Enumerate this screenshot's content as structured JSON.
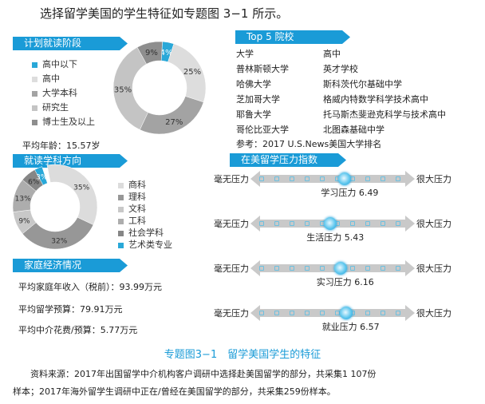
{
  "title": "选择留学美国的学生特征如专题图 3−1 所示。",
  "stage": {
    "header": "计划就读阶段",
    "avg_age": "平均年龄：15.57岁",
    "items": [
      {
        "label": "高中以下",
        "pct": 4,
        "text": "4%",
        "color": "#29a8d8"
      },
      {
        "label": "高中",
        "pct": 25,
        "text": "25%",
        "color": "#dddddd"
      },
      {
        "label": "大学本科",
        "pct": 27,
        "text": "27%",
        "color": "#a3a3a3"
      },
      {
        "label": "研究生",
        "pct": 35,
        "text": "35%",
        "color": "#c4c4c4"
      },
      {
        "label": "博士生及以上",
        "pct": 9,
        "text": "9%",
        "color": "#8e8e8e"
      }
    ]
  },
  "subject": {
    "header": "就读学科方向",
    "items": [
      {
        "label": "商科",
        "pct": 35,
        "text": "35%",
        "color": "#dcdcdc"
      },
      {
        "label": "理科",
        "pct": 32,
        "text": "32%",
        "color": "#979797"
      },
      {
        "label": "文科",
        "pct": 9,
        "text": "9%",
        "color": "#c8c8c8"
      },
      {
        "label": "工科",
        "pct": 13,
        "text": "13%",
        "color": "#adadad"
      },
      {
        "label": "社会学科",
        "pct": 6,
        "text": "6%",
        "color": "#868686"
      },
      {
        "label": "艺术类专业",
        "pct": 3,
        "text": "3%",
        "color": "#29a8d8"
      }
    ]
  },
  "economy": {
    "header": "家庭经济情况",
    "lines": [
      "平均家庭年收入（税前）：93.99万元",
      "平均留学预算：79.91万元",
      "平均中介花费/预算：5.77万元"
    ]
  },
  "top5": {
    "header": "Top 5 院校",
    "col_university": "大学",
    "col_highschool": "高中",
    "universities": [
      "普林斯顿大学",
      "哈佛大学",
      "芝加哥大学",
      "耶鲁大学",
      "哥伦比亚大学"
    ],
    "highschools": [
      "英才学校",
      "斯科茨代尔基础中学",
      "格威内特数学科学技术高中",
      "托马斯杰斐逊克科学与技术高中",
      "北图森基础中学"
    ],
    "reference": "参考：2017 U.S.News美国大学排名"
  },
  "pressure": {
    "header": "在美留学压力指数",
    "left_label": "毫无压力",
    "right_label": "很大压力",
    "scale_max": 10,
    "items": [
      {
        "label": "学习压力 6.49",
        "value": 6.49
      },
      {
        "label": "生活压力 5.43",
        "value": 5.43
      },
      {
        "label": "实习压力 6.16",
        "value": 6.16
      },
      {
        "label": "就业压力 6.57",
        "value": 6.57
      }
    ]
  },
  "caption": "专题图3−1　留学美国学生的特征",
  "source_line1": "资料来源：2017年出国留学中介机构客户调研中选择赴美国留学的部分，共采集1 107份",
  "source_line2": "样本；2017年海外留学生调研中正在/曾经在美国留学的部分，共采集259份样本。"
}
